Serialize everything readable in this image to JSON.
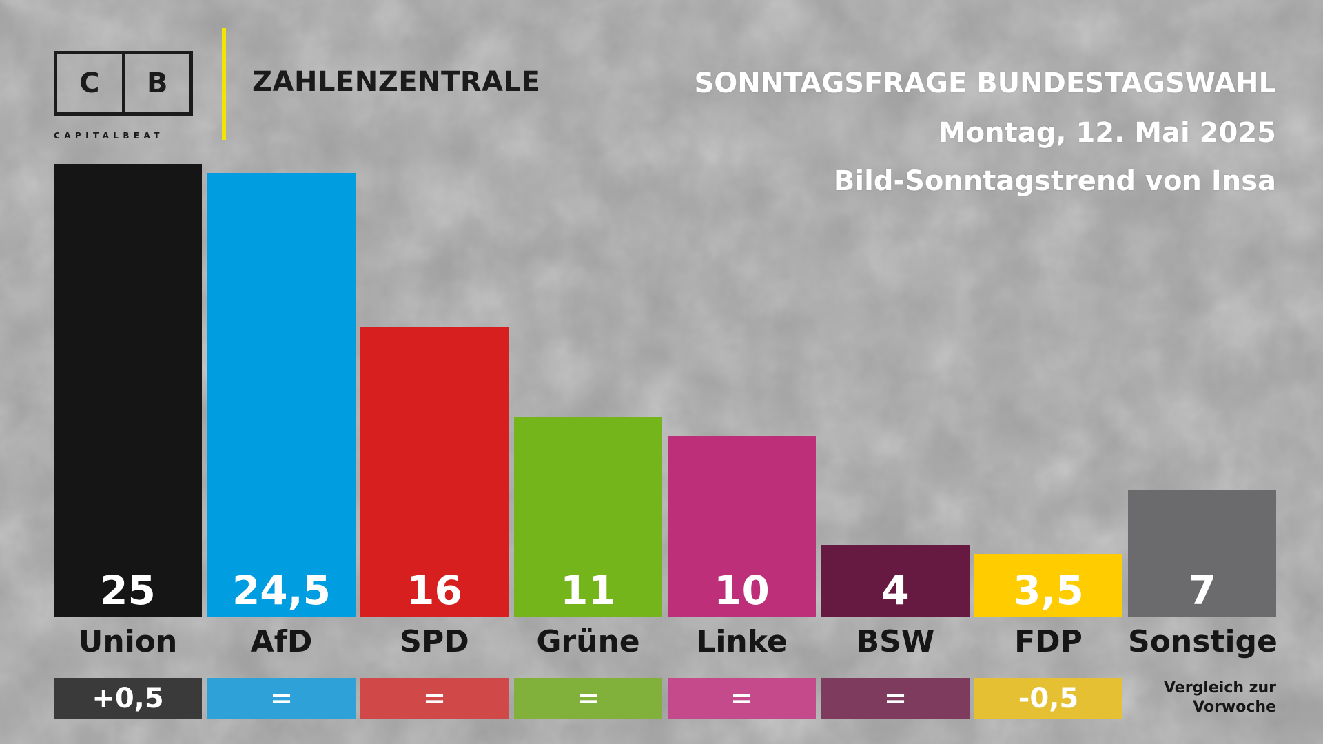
{
  "brand": {
    "logo_left": "C",
    "logo_right": "B",
    "logo_word": "CAPITALBEAT",
    "section_title": "ZAHLENZENTRALE",
    "accent_color": "#f2e500"
  },
  "header": {
    "title": "SONNTAGSFRAGE BUNDESTAGSWAHL",
    "date": "Montag, 12. Mai 2025",
    "source": "Bild-Sonntagstrend von Insa"
  },
  "compare_note": [
    "Vergleich zur",
    "Vorwoche"
  ],
  "chart_data": {
    "type": "bar",
    "title": "SONNTAGSFRAGE BUNDESTAGSWAHL",
    "xlabel": "",
    "ylabel": "",
    "ylim": [
      0,
      25
    ],
    "grid": false,
    "legend": "none",
    "categories": [
      "Union",
      "AfD",
      "SPD",
      "Grüne",
      "Linke",
      "BSW",
      "FDP",
      "Sonstige"
    ],
    "values": [
      25,
      24.5,
      16,
      11,
      10,
      4,
      3.5,
      7
    ],
    "value_labels": [
      "25",
      "24,5",
      "16",
      "11",
      "10",
      "4",
      "3,5",
      "7"
    ],
    "colors": [
      "#151515",
      "#009ee0",
      "#d71f1f",
      "#74b51b",
      "#be2f7a",
      "#661a41",
      "#ffcc00",
      "#6b6b6d"
    ],
    "changes": [
      "+0,5",
      "=",
      "=",
      "=",
      "=",
      "=",
      "-0,5",
      ""
    ],
    "change_colors": [
      "#3a3a3a",
      "#2ea2d8",
      "#d04848",
      "#81b03b",
      "#c44a8c",
      "#7e3b5e",
      "#e5c032",
      ""
    ]
  }
}
